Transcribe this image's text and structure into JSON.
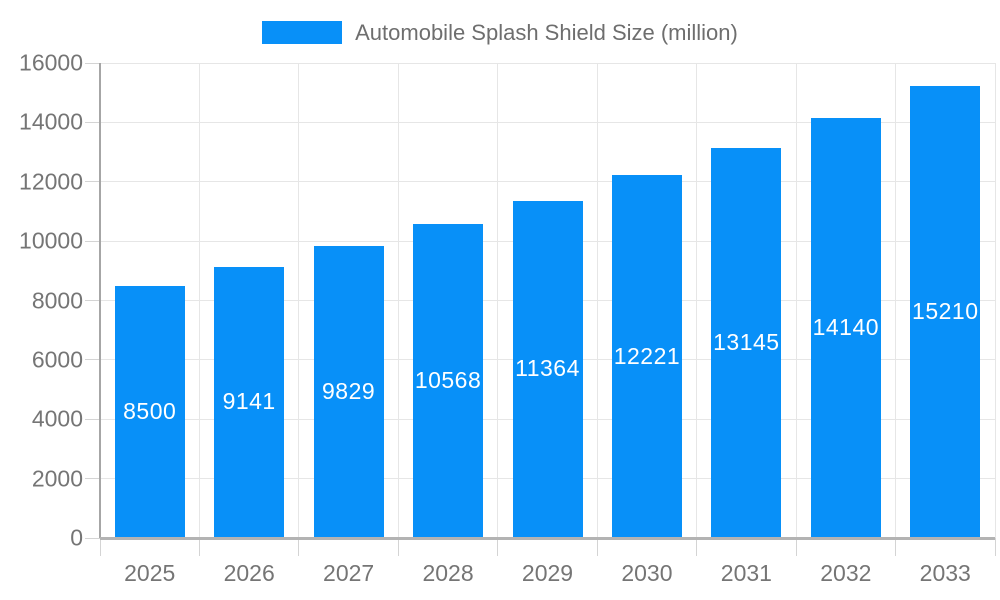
{
  "legend": {
    "label": "Automobile Splash Shield Size (million)"
  },
  "colors": {
    "bar": "#0890F8",
    "bar_label": "#ffffff",
    "axis_line": "#a6a6a6",
    "bottom_axis_line": "#b3b3b3",
    "grid_line": "#e6e6e6",
    "tick": "#d4d4d4",
    "axis_label": "#757575",
    "legend_text": "#6e6e6e"
  },
  "chart_data": {
    "type": "bar",
    "title": "Automobile Splash Shield Size (million)",
    "categories": [
      "2025",
      "2026",
      "2027",
      "2028",
      "2029",
      "2030",
      "2031",
      "2032",
      "2033"
    ],
    "values": [
      8500,
      9141,
      9829,
      10568,
      11364,
      12221,
      13145,
      14140,
      15210
    ],
    "series_name": "Automobile Splash Shield Size (million)",
    "xlabel": "",
    "ylabel": "",
    "ylim": [
      0,
      16000
    ],
    "ytick_step": 2000,
    "ytick_labels": [
      "0",
      "2000",
      "4000",
      "6000",
      "8000",
      "10000",
      "12000",
      "14000",
      "16000"
    ],
    "grid": true,
    "legend_position": "top-center",
    "bar_labels_visible": true,
    "bar_label_position": "center-inside"
  }
}
